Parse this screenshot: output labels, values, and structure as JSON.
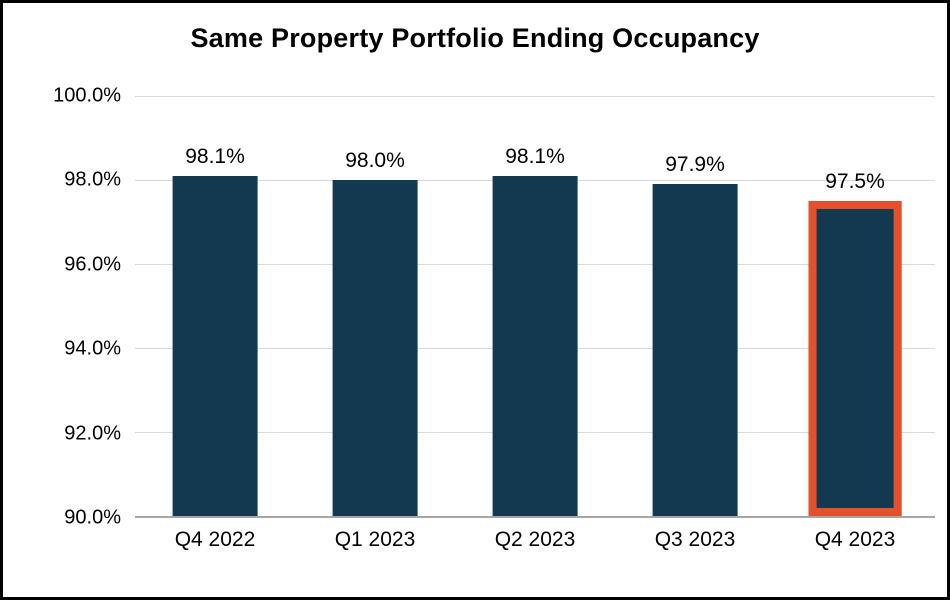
{
  "chart_data": {
    "type": "bar",
    "title": "Same Property Portfolio Ending Occupancy",
    "categories": [
      "Q4 2022",
      "Q1 2023",
      "Q2 2023",
      "Q3 2023",
      "Q4 2023"
    ],
    "values": [
      98.1,
      98.0,
      98.1,
      97.9,
      97.5
    ],
    "data_labels": [
      "98.1%",
      "98.0%",
      "98.1%",
      "97.9%",
      "97.5%"
    ],
    "highlight_index": 4,
    "xlabel": "",
    "ylabel": "",
    "ylim": [
      90,
      100
    ],
    "yticks": [
      {
        "value": 100,
        "label": "100.0%"
      },
      {
        "value": 98,
        "label": "98.0%"
      },
      {
        "value": 96,
        "label": "96.0%"
      },
      {
        "value": 94,
        "label": "94.0%"
      },
      {
        "value": 92,
        "label": "92.0%"
      }
    ],
    "baseline_tick": {
      "value": 90,
      "label": "90.0%"
    },
    "grid": true,
    "legend": "none",
    "colors": {
      "bar": "#12394f",
      "highlight_border": "#e2502c",
      "gridline": "#d9d9d9",
      "axis_line": "#a6a6a6",
      "text": "#000000",
      "frame_border": "#000000",
      "background": "#ffffff"
    }
  }
}
